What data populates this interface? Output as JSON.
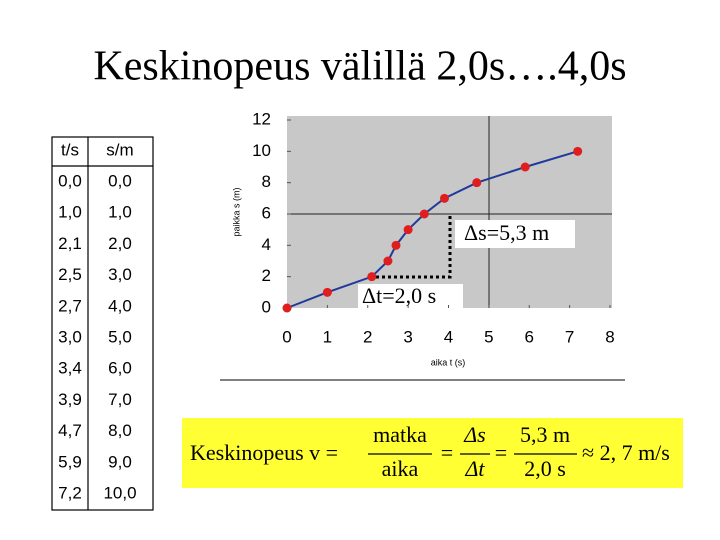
{
  "title": "Keskinopeus välillä 2,0s….4,0s",
  "table": {
    "header": [
      "t/s",
      "s/m"
    ],
    "rows": [
      [
        "0,0",
        "0,0"
      ],
      [
        "1,0",
        "1,0"
      ],
      [
        "2,1",
        "2,0"
      ],
      [
        "2,5",
        "3,0"
      ],
      [
        "2,7",
        "4,0"
      ],
      [
        "3,0",
        "5,0"
      ],
      [
        "3,4",
        "6,0"
      ],
      [
        "3,9",
        "7,0"
      ],
      [
        "4,7",
        "8,0"
      ],
      [
        "5,9",
        "9,0"
      ],
      [
        "7,2",
        "10,0"
      ]
    ]
  },
  "chart_data": {
    "type": "line",
    "x": [
      0,
      1,
      2.1,
      2.5,
      2.7,
      3,
      3.4,
      3.9,
      4.7,
      5.9,
      7.2
    ],
    "values": [
      0,
      1,
      2,
      3,
      4,
      5,
      6,
      7,
      8,
      9,
      10
    ],
    "line_color": "#1f3a9a",
    "marker_color": "#e01e1e",
    "xlim": [
      0,
      8
    ],
    "ylim": [
      0,
      12
    ],
    "xticks": [
      0,
      1,
      2,
      3,
      4,
      5,
      6,
      7,
      8
    ],
    "yticks": [
      0,
      2,
      4,
      6,
      8,
      10,
      12
    ],
    "xlabel": "aika t (s)",
    "ylabel": "paikka s (m)",
    "annotations": [
      "Δs=5,3 m",
      "Δt=2,0 s"
    ]
  },
  "formula": {
    "lhs": "Keskinopeus v =",
    "equals": "=",
    "fractions": [
      {
        "num": "matka",
        "den": "aika"
      },
      {
        "num": "Δs",
        "den": "Δt"
      },
      {
        "num": "5,3 m",
        "den": "2,0 s"
      }
    ],
    "result": "≈ 2, 7 m/s"
  }
}
